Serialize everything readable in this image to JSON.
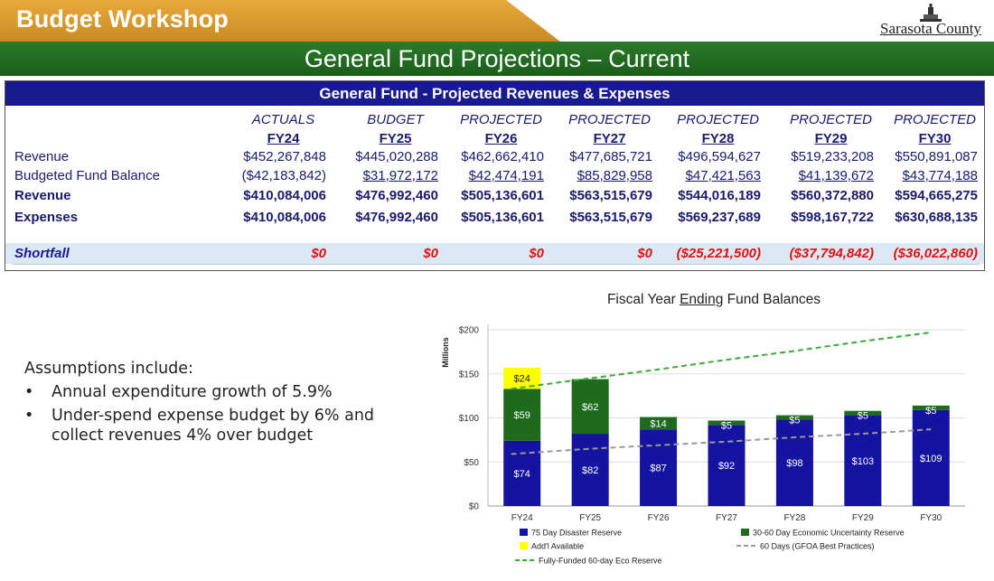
{
  "header": {
    "title": "Budget Workshop",
    "logo_text": "Sarasota County",
    "subtitle": "General Fund Projections – Current"
  },
  "table": {
    "title": "General Fund - Projected Revenues & Expenses",
    "columns": [
      {
        "type": "ACTUALS",
        "fy": "FY24"
      },
      {
        "type": "BUDGET",
        "fy": "FY25"
      },
      {
        "type": "PROJECTED",
        "fy": "FY26"
      },
      {
        "type": "PROJECTED",
        "fy": "FY27"
      },
      {
        "type": "PROJECTED",
        "fy": "FY28"
      },
      {
        "type": "PROJECTED",
        "fy": "FY29"
      },
      {
        "type": "PROJECTED",
        "fy": "FY30"
      }
    ],
    "rows": [
      {
        "label": "Revenue",
        "values": [
          "$452,267,848",
          "$445,020,288",
          "$462,662,410",
          "$477,685,721",
          "$496,594,627",
          "$519,233,208",
          "$550,891,087"
        ]
      },
      {
        "label": "Budgeted Fund Balance",
        "values": [
          "($42,183,842)",
          "$31,972,172",
          "$42,474,191",
          "$85,829,958",
          "$47,421,563",
          "$41,139,672",
          "$43,774,188"
        ]
      },
      {
        "label": "Revenue",
        "values": [
          "$410,084,006",
          "$476,992,460",
          "$505,136,601",
          "$563,515,679",
          "$544,016,189",
          "$560,372,880",
          "$594,665,275"
        ]
      },
      {
        "label": "Expenses",
        "values": [
          "$410,084,006",
          "$476,992,460",
          "$505,136,601",
          "$563,515,679",
          "$569,237,689",
          "$598,167,722",
          "$630,688,135"
        ]
      },
      {
        "label": "Shortfall",
        "values": [
          "$0",
          "$0",
          "$0",
          "$0",
          "($25,221,500)",
          "($37,794,842)",
          "($36,022,860)"
        ]
      }
    ]
  },
  "assumptions": {
    "heading": "Assumptions include:",
    "items": [
      "Annual expenditure growth of 5.9%",
      "Under-spend expense budget by 6% and",
      "collect revenues 4% over budget"
    ]
  },
  "chart_data": {
    "type": "bar",
    "stacked": true,
    "title_pre": "Fiscal Year",
    "title_em": "Ending",
    "title_post": "Fund Balances",
    "ylabel": "Millions",
    "ylim": [
      0,
      200
    ],
    "yticks": [
      "$0",
      "$50",
      "$100",
      "$150",
      "$200"
    ],
    "ytick_values": [
      0,
      50,
      100,
      150,
      200
    ],
    "categories": [
      "FY24",
      "FY25",
      "FY26",
      "FY27",
      "FY28",
      "FY29",
      "FY30"
    ],
    "series": [
      {
        "name": "75 Day Disaster Reserve",
        "color": "#1414a0",
        "values": [
          74,
          82,
          87,
          92,
          98,
          103,
          109
        ],
        "labels": [
          "$74",
          "$82",
          "$87",
          "$92",
          "$98",
          "$103",
          "$109"
        ]
      },
      {
        "name": "30-60 Day Economic Uncertainty Reserve",
        "color": "#1e6b1e",
        "values": [
          59,
          62,
          14,
          5,
          5,
          5,
          5
        ],
        "labels": [
          "$59",
          "$62",
          "$14",
          "$5",
          "$5",
          "$5",
          "$5"
        ]
      },
      {
        "name": "Add'l Available",
        "color": "#ffff00",
        "values": [
          24,
          0,
          0,
          0,
          0,
          0,
          0
        ],
        "labels": [
          "$24",
          "",
          "",
          "",
          "",
          "",
          ""
        ]
      }
    ],
    "lines": [
      {
        "name": "60 Days (GFOA Best Practices)",
        "color": "#9a9a9a",
        "values": [
          59,
          65,
          69,
          73,
          78,
          82,
          87
        ]
      },
      {
        "name": "Fully-Funded 60-day Eco Reserve",
        "color": "#3aaa3a",
        "values": [
          133,
          145,
          155,
          166,
          176,
          187,
          197
        ]
      }
    ],
    "legend": [
      {
        "label": "75 Day Disaster Reserve",
        "kind": "box",
        "color": "#1414a0"
      },
      {
        "label": "30-60 Day Economic Uncertainty Reserve",
        "kind": "box",
        "color": "#1e6b1e"
      },
      {
        "label": "Add'l Available",
        "kind": "box",
        "color": "#ffff00"
      },
      {
        "label": "60 Days (GFOA Best Practices)",
        "kind": "dash",
        "color": "#9a9a9a"
      },
      {
        "label": "Fully-Funded 60-day Eco Reserve",
        "kind": "dash",
        "color": "#3aaa3a"
      }
    ]
  }
}
